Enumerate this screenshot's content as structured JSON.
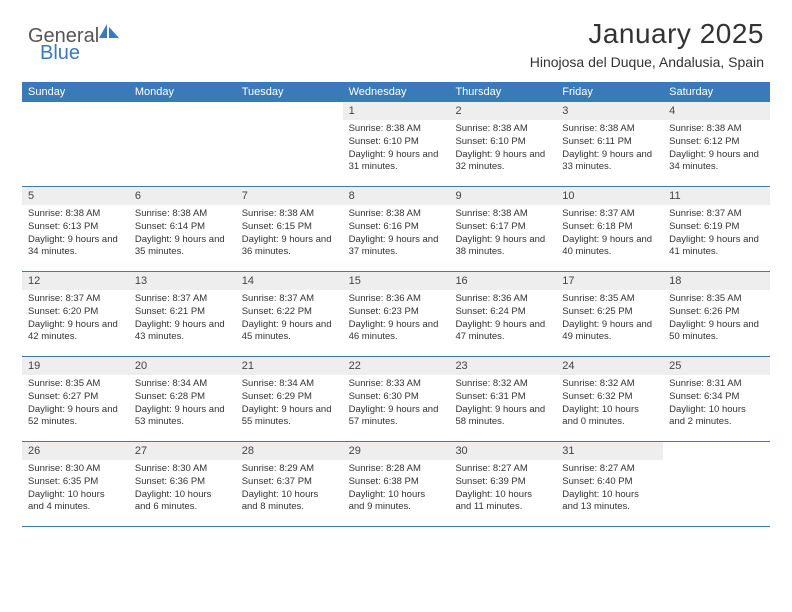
{
  "brand": {
    "part1": "General",
    "part2": "Blue"
  },
  "title": "January 2025",
  "location": "Hinojosa del Duque, Andalusia, Spain",
  "colors": {
    "accent": "#3a7ab8",
    "daynum_bg": "#eeeeee",
    "text": "#333333",
    "logo_gray": "#555555"
  },
  "dayNames": [
    "Sunday",
    "Monday",
    "Tuesday",
    "Wednesday",
    "Thursday",
    "Friday",
    "Saturday"
  ],
  "weeks": [
    [
      null,
      null,
      null,
      {
        "n": "1",
        "sunrise": "8:38 AM",
        "sunset": "6:10 PM",
        "daylight": "9 hours and 31 minutes."
      },
      {
        "n": "2",
        "sunrise": "8:38 AM",
        "sunset": "6:10 PM",
        "daylight": "9 hours and 32 minutes."
      },
      {
        "n": "3",
        "sunrise": "8:38 AM",
        "sunset": "6:11 PM",
        "daylight": "9 hours and 33 minutes."
      },
      {
        "n": "4",
        "sunrise": "8:38 AM",
        "sunset": "6:12 PM",
        "daylight": "9 hours and 34 minutes."
      }
    ],
    [
      {
        "n": "5",
        "sunrise": "8:38 AM",
        "sunset": "6:13 PM",
        "daylight": "9 hours and 34 minutes."
      },
      {
        "n": "6",
        "sunrise": "8:38 AM",
        "sunset": "6:14 PM",
        "daylight": "9 hours and 35 minutes."
      },
      {
        "n": "7",
        "sunrise": "8:38 AM",
        "sunset": "6:15 PM",
        "daylight": "9 hours and 36 minutes."
      },
      {
        "n": "8",
        "sunrise": "8:38 AM",
        "sunset": "6:16 PM",
        "daylight": "9 hours and 37 minutes."
      },
      {
        "n": "9",
        "sunrise": "8:38 AM",
        "sunset": "6:17 PM",
        "daylight": "9 hours and 38 minutes."
      },
      {
        "n": "10",
        "sunrise": "8:37 AM",
        "sunset": "6:18 PM",
        "daylight": "9 hours and 40 minutes."
      },
      {
        "n": "11",
        "sunrise": "8:37 AM",
        "sunset": "6:19 PM",
        "daylight": "9 hours and 41 minutes."
      }
    ],
    [
      {
        "n": "12",
        "sunrise": "8:37 AM",
        "sunset": "6:20 PM",
        "daylight": "9 hours and 42 minutes."
      },
      {
        "n": "13",
        "sunrise": "8:37 AM",
        "sunset": "6:21 PM",
        "daylight": "9 hours and 43 minutes."
      },
      {
        "n": "14",
        "sunrise": "8:37 AM",
        "sunset": "6:22 PM",
        "daylight": "9 hours and 45 minutes."
      },
      {
        "n": "15",
        "sunrise": "8:36 AM",
        "sunset": "6:23 PM",
        "daylight": "9 hours and 46 minutes."
      },
      {
        "n": "16",
        "sunrise": "8:36 AM",
        "sunset": "6:24 PM",
        "daylight": "9 hours and 47 minutes."
      },
      {
        "n": "17",
        "sunrise": "8:35 AM",
        "sunset": "6:25 PM",
        "daylight": "9 hours and 49 minutes."
      },
      {
        "n": "18",
        "sunrise": "8:35 AM",
        "sunset": "6:26 PM",
        "daylight": "9 hours and 50 minutes."
      }
    ],
    [
      {
        "n": "19",
        "sunrise": "8:35 AM",
        "sunset": "6:27 PM",
        "daylight": "9 hours and 52 minutes."
      },
      {
        "n": "20",
        "sunrise": "8:34 AM",
        "sunset": "6:28 PM",
        "daylight": "9 hours and 53 minutes."
      },
      {
        "n": "21",
        "sunrise": "8:34 AM",
        "sunset": "6:29 PM",
        "daylight": "9 hours and 55 minutes."
      },
      {
        "n": "22",
        "sunrise": "8:33 AM",
        "sunset": "6:30 PM",
        "daylight": "9 hours and 57 minutes."
      },
      {
        "n": "23",
        "sunrise": "8:32 AM",
        "sunset": "6:31 PM",
        "daylight": "9 hours and 58 minutes."
      },
      {
        "n": "24",
        "sunrise": "8:32 AM",
        "sunset": "6:32 PM",
        "daylight": "10 hours and 0 minutes."
      },
      {
        "n": "25",
        "sunrise": "8:31 AM",
        "sunset": "6:34 PM",
        "daylight": "10 hours and 2 minutes."
      }
    ],
    [
      {
        "n": "26",
        "sunrise": "8:30 AM",
        "sunset": "6:35 PM",
        "daylight": "10 hours and 4 minutes."
      },
      {
        "n": "27",
        "sunrise": "8:30 AM",
        "sunset": "6:36 PM",
        "daylight": "10 hours and 6 minutes."
      },
      {
        "n": "28",
        "sunrise": "8:29 AM",
        "sunset": "6:37 PM",
        "daylight": "10 hours and 8 minutes."
      },
      {
        "n": "29",
        "sunrise": "8:28 AM",
        "sunset": "6:38 PM",
        "daylight": "10 hours and 9 minutes."
      },
      {
        "n": "30",
        "sunrise": "8:27 AM",
        "sunset": "6:39 PM",
        "daylight": "10 hours and 11 minutes."
      },
      {
        "n": "31",
        "sunrise": "8:27 AM",
        "sunset": "6:40 PM",
        "daylight": "10 hours and 13 minutes."
      },
      null
    ]
  ],
  "labels": {
    "sunrise": "Sunrise:",
    "sunset": "Sunset:",
    "daylight": "Daylight:"
  }
}
